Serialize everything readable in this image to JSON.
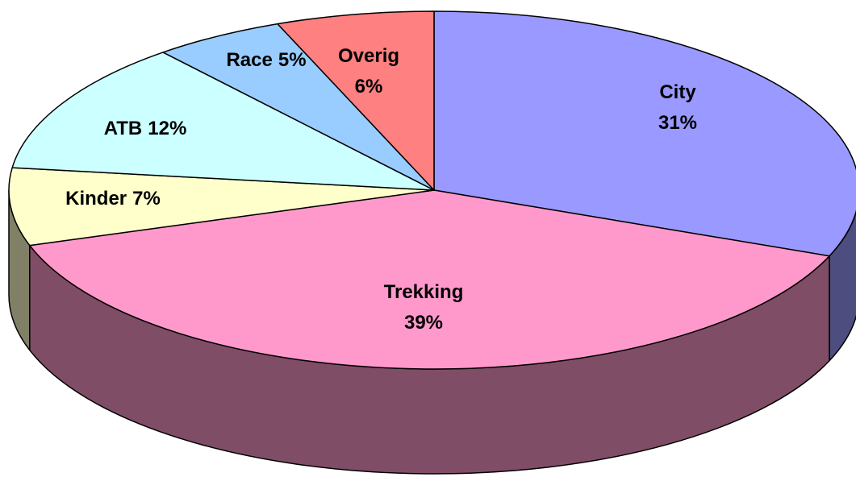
{
  "chart_data": {
    "type": "pie",
    "categories": [
      "City",
      "Trekking",
      "Kinder",
      "ATB",
      "Race",
      "Overig"
    ],
    "values": [
      31,
      39,
      7,
      12,
      5,
      6
    ],
    "value_labels": [
      "31%",
      "39%",
      "7%",
      "12%",
      "5%",
      "6%"
    ],
    "colors": [
      "#9999ff",
      "#ff99cc",
      "#ffffcc",
      "#ccffff",
      "#99ccff",
      "#ff8080"
    ]
  }
}
